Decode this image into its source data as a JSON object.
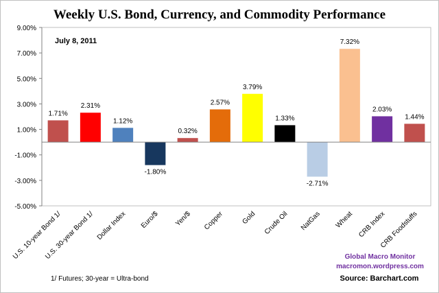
{
  "chart_data": {
    "type": "bar",
    "title": "Weekly U.S. Bond, Currency, and Commodity Performance",
    "subtitle": "July 8, 2011",
    "categories": [
      "U.S. 10-year Bond 1/",
      "U.S. 30-year Bond 1/",
      "Dollar Index",
      "Euro/$",
      "Yen/$",
      "Copper",
      "Gold",
      "Crude Oil",
      "NatGas",
      "Wheat",
      "CRB Index",
      "CRB Foodstuffs"
    ],
    "values": [
      1.71,
      2.31,
      1.12,
      -1.8,
      0.32,
      2.57,
      3.79,
      1.33,
      -2.71,
      7.32,
      2.03,
      1.44
    ],
    "value_labels": [
      "1.71%",
      "2.31%",
      "1.12%",
      "-1.80%",
      "0.32%",
      "2.57%",
      "3.79%",
      "1.33%",
      "-2.71%",
      "7.32%",
      "2.03%",
      "1.44%"
    ],
    "colors": [
      "#c0504d",
      "#ff0000",
      "#4f81bd",
      "#17375e",
      "#c0504d",
      "#e46c0a",
      "#ffff00",
      "#000000",
      "#b9cde5",
      "#fac090",
      "#7030a0",
      "#c0504d"
    ],
    "ylim": [
      -5,
      9
    ],
    "yticks": [
      -5,
      -3,
      -1,
      1,
      3,
      5,
      7,
      9
    ],
    "ytick_labels": [
      "-5.00%",
      "-3.00%",
      "-1.00%",
      "1.00%",
      "3.00%",
      "5.00%",
      "7.00%",
      "9.00%"
    ],
    "xlabel": "",
    "ylabel": "",
    "grid": false,
    "legend": "none"
  },
  "footnote": "1/ Futures; 30-year = Ultra-bond",
  "credit": {
    "line1": "Global Macro Monitor",
    "line2": "macromon.wordpress.com"
  },
  "source": "Source:  Barchart.com"
}
